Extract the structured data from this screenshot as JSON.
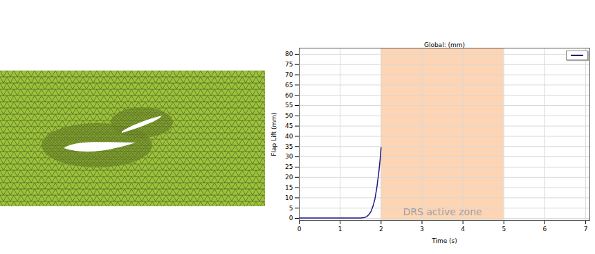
{
  "chart_data": {
    "type": "line",
    "title": "Global: (mm)",
    "x_label": "Time (s)",
    "y_label": "Flap Lift (mm)",
    "x": [
      0,
      0.5,
      1.0,
      1.3,
      1.5,
      1.6,
      1.65,
      1.7,
      1.75,
      1.8,
      1.85,
      1.9,
      1.95,
      1.98,
      2.0
    ],
    "series": [
      {
        "color": "#1a1a80",
        "values": [
          0.2,
          0.2,
          0.2,
          0.2,
          0.2,
          0.4,
          0.9,
          1.8,
          3.2,
          5.8,
          9.5,
          15.5,
          23.5,
          29.5,
          34.5
        ]
      }
    ],
    "xlim": [
      0,
      7.1
    ],
    "ylim": [
      -1,
      83
    ],
    "xticks": [
      0,
      1,
      2,
      3,
      4,
      5,
      6,
      7
    ],
    "yticks": [
      0,
      5,
      10,
      15,
      20,
      25,
      30,
      35,
      40,
      45,
      50,
      55,
      60,
      65,
      70,
      75,
      80
    ],
    "grid": true,
    "legend": "top-right",
    "annotations": [
      {
        "text": "DRS active zone",
        "x_range": [
          2,
          5
        ],
        "color": "#fdd5b4"
      }
    ]
  }
}
